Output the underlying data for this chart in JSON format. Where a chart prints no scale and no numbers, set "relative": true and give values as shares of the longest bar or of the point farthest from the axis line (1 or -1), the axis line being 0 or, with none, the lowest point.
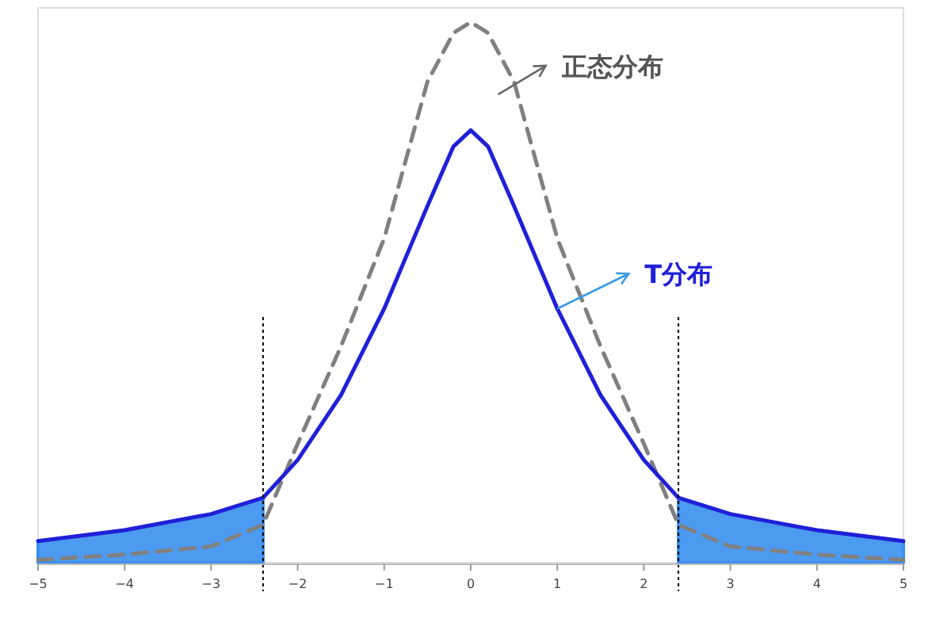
{
  "chart_data": {
    "type": "line",
    "relative": true,
    "xlim": [
      -5,
      5
    ],
    "xticks": [
      -5,
      -4,
      -3,
      -2,
      -1,
      0,
      1,
      2,
      3,
      4,
      5
    ],
    "series": [
      {
        "name": "正态分布",
        "color": "#808080",
        "line_style": "dashed",
        "x": [
          -5,
          -4,
          -3,
          -2.4,
          -2,
          -1.5,
          -1,
          -0.5,
          -0.2,
          0,
          0.2,
          0.5,
          1,
          1.5,
          2,
          2.4,
          3,
          4,
          5
        ],
        "values": [
          0.005,
          0.015,
          0.03,
          0.07,
          0.22,
          0.4,
          0.6,
          0.89,
          0.98,
          1,
          0.98,
          0.89,
          0.6,
          0.4,
          0.22,
          0.07,
          0.03,
          0.015,
          0.005
        ]
      },
      {
        "name": "T分布",
        "color": "#2020d8",
        "x": [
          -5,
          -4,
          -3,
          -2.4,
          -2,
          -1.5,
          -1,
          -0.5,
          -0.2,
          0,
          0.2,
          0.5,
          1,
          1.5,
          2,
          2.4,
          3,
          4,
          5
        ],
        "values": [
          0.04,
          0.06,
          0.09,
          0.12,
          0.19,
          0.31,
          0.47,
          0.66,
          0.77,
          0.8,
          0.77,
          0.66,
          0.47,
          0.31,
          0.19,
          0.12,
          0.09,
          0.06,
          0.04
        ]
      },
      {
        "type": "area",
        "color": "#3a8ff0",
        "x": [
          -5,
          -4,
          -3,
          -2.4
        ],
        "values": [
          0.04,
          0.06,
          0.09,
          0.12
        ]
      },
      {
        "type": "area",
        "color": "#3a8ff0",
        "x": [
          2.4,
          3,
          4,
          5
        ],
        "values": [
          0.12,
          0.09,
          0.06,
          0.04
        ]
      }
    ],
    "ref_lines": [
      {
        "axis": "x",
        "value": -2.4,
        "color": "#000000",
        "line_style": "dotted"
      },
      {
        "axis": "x",
        "value": 2.4,
        "color": "#000000",
        "line_style": "dotted"
      }
    ],
    "grid": false
  }
}
